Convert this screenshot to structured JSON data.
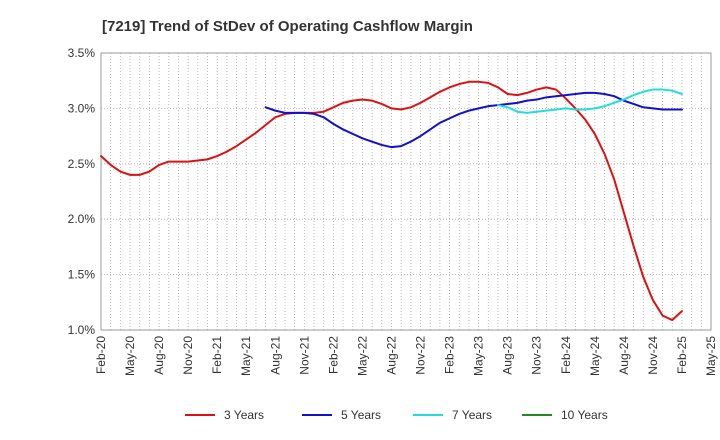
{
  "chart_data": {
    "type": "line",
    "title": "[7219]  Trend of StDev of Operating Cashflow Margin",
    "xlabel": "",
    "ylabel": "",
    "ylim": [
      1.0,
      3.5
    ],
    "y_ticks": [
      "1.0%",
      "1.5%",
      "2.0%",
      "2.5%",
      "3.0%",
      "3.5%"
    ],
    "y_tick_values": [
      1.0,
      1.5,
      2.0,
      2.5,
      3.0,
      3.5
    ],
    "x_ticks": [
      "Feb-20",
      "May-20",
      "Aug-20",
      "Nov-20",
      "Feb-21",
      "May-21",
      "Aug-21",
      "Nov-21",
      "Feb-22",
      "May-22",
      "Aug-22",
      "Nov-22",
      "Feb-23",
      "May-23",
      "Aug-23",
      "Nov-23",
      "Feb-24",
      "May-24",
      "Aug-24",
      "Nov-24",
      "Feb-25",
      "May-25"
    ],
    "grid": true,
    "legend_position": "bottom",
    "series": [
      {
        "name": "3 Years",
        "color": "#dd1111",
        "x": [
          "Feb-20",
          "Mar-20",
          "Apr-20",
          "May-20",
          "Jun-20",
          "Jul-20",
          "Aug-20",
          "Sep-20",
          "Oct-20",
          "Nov-20",
          "Dec-20",
          "Jan-21",
          "Feb-21",
          "Mar-21",
          "Apr-21",
          "May-21",
          "Jun-21",
          "Jul-21",
          "Aug-21",
          "Sep-21",
          "Oct-21",
          "Nov-21",
          "Dec-21",
          "Jan-22",
          "Feb-22",
          "Mar-22",
          "Apr-22",
          "May-22",
          "Jun-22",
          "Jul-22",
          "Aug-22",
          "Sep-22",
          "Oct-22",
          "Nov-22",
          "Dec-22",
          "Jan-23",
          "Feb-23",
          "Mar-23",
          "Apr-23",
          "May-23",
          "Jun-23",
          "Jul-23",
          "Aug-23",
          "Sep-23",
          "Oct-23",
          "Nov-23",
          "Dec-23",
          "Jan-24",
          "Feb-24",
          "Mar-24",
          "Apr-24",
          "May-24",
          "Jun-24",
          "Jul-24",
          "Aug-24",
          "Sep-24",
          "Oct-24",
          "Nov-24",
          "Dec-24",
          "Jan-25",
          "Feb-25"
        ],
        "values": [
          2.57,
          2.49,
          2.43,
          2.4,
          2.4,
          2.43,
          2.49,
          2.52,
          2.52,
          2.52,
          2.53,
          2.54,
          2.57,
          2.61,
          2.66,
          2.72,
          2.78,
          2.85,
          2.92,
          2.95,
          2.96,
          2.96,
          2.96,
          2.97,
          3.01,
          3.05,
          3.07,
          3.08,
          3.07,
          3.04,
          3.0,
          2.99,
          3.01,
          3.05,
          3.1,
          3.15,
          3.19,
          3.22,
          3.24,
          3.24,
          3.23,
          3.19,
          3.13,
          3.12,
          3.14,
          3.17,
          3.19,
          3.17,
          3.09,
          3.0,
          2.9,
          2.77,
          2.59,
          2.36,
          2.06,
          1.76,
          1.48,
          1.27,
          1.13,
          1.09,
          1.17
        ]
      },
      {
        "name": "5 Years",
        "color": "#1111cc",
        "x": [
          "Jul-21",
          "Aug-21",
          "Sep-21",
          "Oct-21",
          "Nov-21",
          "Dec-21",
          "Jan-22",
          "Feb-22",
          "Mar-22",
          "Apr-22",
          "May-22",
          "Jun-22",
          "Jul-22",
          "Aug-22",
          "Sep-22",
          "Oct-22",
          "Nov-22",
          "Dec-22",
          "Jan-23",
          "Feb-23",
          "Mar-23",
          "Apr-23",
          "May-23",
          "Jun-23",
          "Jul-23",
          "Aug-23",
          "Sep-23",
          "Oct-23",
          "Nov-23",
          "Dec-23",
          "Jan-24",
          "Feb-24",
          "Mar-24",
          "Apr-24",
          "May-24",
          "Jun-24",
          "Jul-24",
          "Aug-24",
          "Sep-24",
          "Oct-24",
          "Nov-24",
          "Dec-24",
          "Jan-25",
          "Feb-25"
        ],
        "values": [
          3.01,
          2.98,
          2.96,
          2.96,
          2.96,
          2.95,
          2.92,
          2.86,
          2.81,
          2.77,
          2.73,
          2.7,
          2.67,
          2.65,
          2.66,
          2.7,
          2.75,
          2.81,
          2.87,
          2.91,
          2.95,
          2.98,
          3.0,
          3.02,
          3.03,
          3.04,
          3.05,
          3.07,
          3.08,
          3.1,
          3.11,
          3.12,
          3.13,
          3.14,
          3.14,
          3.13,
          3.11,
          3.07,
          3.04,
          3.01,
          3.0,
          2.99,
          2.99,
          2.99
        ]
      },
      {
        "name": "7 Years",
        "color": "#22dddd",
        "x": [
          "Jul-23",
          "Aug-23",
          "Sep-23",
          "Oct-23",
          "Nov-23",
          "Dec-23",
          "Jan-24",
          "Feb-24",
          "Mar-24",
          "Apr-24",
          "May-24",
          "Jun-24",
          "Jul-24",
          "Aug-24",
          "Sep-24",
          "Oct-24",
          "Nov-24",
          "Dec-24",
          "Jan-25",
          "Feb-25"
        ],
        "values": [
          3.03,
          3.01,
          2.97,
          2.96,
          2.97,
          2.98,
          2.99,
          3.0,
          2.99,
          2.99,
          3.0,
          3.02,
          3.05,
          3.08,
          3.12,
          3.15,
          3.17,
          3.17,
          3.16,
          3.13
        ]
      },
      {
        "name": "10 Years",
        "color": "#228822",
        "x": [],
        "values": []
      }
    ]
  }
}
